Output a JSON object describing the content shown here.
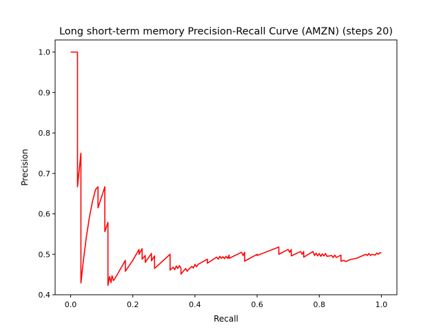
{
  "chart_data": {
    "type": "line",
    "title": "Long short-term memory Precision-Recall Curve (AMZN) (steps 20)",
    "xlabel": "Recall",
    "ylabel": "Precision",
    "xlim": [
      -0.05,
      1.05
    ],
    "ylim": [
      0.4,
      1.03
    ],
    "grid": false,
    "legend": "none",
    "x_ticks": [
      0.0,
      0.2,
      0.4,
      0.6,
      0.8,
      1.0
    ],
    "x_tick_labels": [
      "0.0",
      "0.2",
      "0.4",
      "0.6",
      "0.8",
      "1.0"
    ],
    "y_ticks": [
      0.4,
      0.5,
      0.6,
      0.7,
      0.8,
      0.9,
      1.0
    ],
    "y_tick_labels": [
      "0.4",
      "0.5",
      "0.6",
      "0.7",
      "0.8",
      "0.9",
      "1.0"
    ],
    "series": [
      {
        "color": "#ff0000",
        "x": [
          0.0,
          0.022,
          0.022,
          0.033,
          0.033,
          0.04,
          0.05,
          0.06,
          0.07,
          0.08,
          0.088,
          0.088,
          0.11,
          0.11,
          0.12,
          0.12,
          0.125,
          0.13,
          0.133,
          0.138,
          0.14,
          0.15,
          0.176,
          0.176,
          0.2,
          0.22,
          0.22,
          0.23,
          0.23,
          0.24,
          0.24,
          0.26,
          0.26,
          0.27,
          0.27,
          0.32,
          0.32,
          0.33,
          0.335,
          0.34,
          0.345,
          0.35,
          0.355,
          0.355,
          0.37,
          0.375,
          0.38,
          0.39,
          0.395,
          0.4,
          0.405,
          0.41,
          0.44,
          0.44,
          0.47,
          0.475,
          0.48,
          0.485,
          0.49,
          0.495,
          0.5,
          0.505,
          0.51,
          0.51,
          0.55,
          0.555,
          0.56,
          0.56,
          0.6,
          0.6,
          0.67,
          0.67,
          0.7,
          0.705,
          0.71,
          0.71,
          0.74,
          0.745,
          0.75,
          0.75,
          0.78,
          0.785,
          0.79,
          0.795,
          0.8,
          0.805,
          0.81,
          0.815,
          0.82,
          0.825,
          0.84,
          0.845,
          0.85,
          0.855,
          0.87,
          0.87,
          0.88,
          0.885,
          0.9,
          0.92,
          0.95,
          0.955,
          0.96,
          0.965,
          0.97,
          0.98,
          0.985,
          0.99,
          0.995,
          1.0
        ],
        "y": [
          1.0,
          1.0,
          0.667,
          0.75,
          0.429,
          0.478,
          0.54,
          0.59,
          0.63,
          0.66,
          0.667,
          0.615,
          0.667,
          0.556,
          0.579,
          0.423,
          0.445,
          0.43,
          0.447,
          0.435,
          0.437,
          0.45,
          0.485,
          0.458,
          0.485,
          0.512,
          0.5,
          0.514,
          0.488,
          0.497,
          0.48,
          0.502,
          0.484,
          0.496,
          0.465,
          0.5,
          0.461,
          0.468,
          0.462,
          0.471,
          0.465,
          0.472,
          0.466,
          0.451,
          0.465,
          0.458,
          0.463,
          0.47,
          0.466,
          0.475,
          0.469,
          0.475,
          0.488,
          0.478,
          0.493,
          0.488,
          0.495,
          0.49,
          0.494,
          0.489,
          0.495,
          0.49,
          0.498,
          0.49,
          0.505,
          0.497,
          0.505,
          0.483,
          0.5,
          0.497,
          0.518,
          0.5,
          0.512,
          0.505,
          0.512,
          0.496,
          0.507,
          0.5,
          0.507,
          0.493,
          0.507,
          0.497,
          0.503,
          0.496,
          0.502,
          0.495,
          0.501,
          0.496,
          0.502,
          0.495,
          0.497,
          0.492,
          0.498,
          0.492,
          0.498,
          0.483,
          0.485,
          0.482,
          0.487,
          0.49,
          0.5,
          0.497,
          0.502,
          0.497,
          0.5,
          0.498,
          0.503,
          0.5,
          0.504,
          0.504
        ]
      }
    ]
  }
}
